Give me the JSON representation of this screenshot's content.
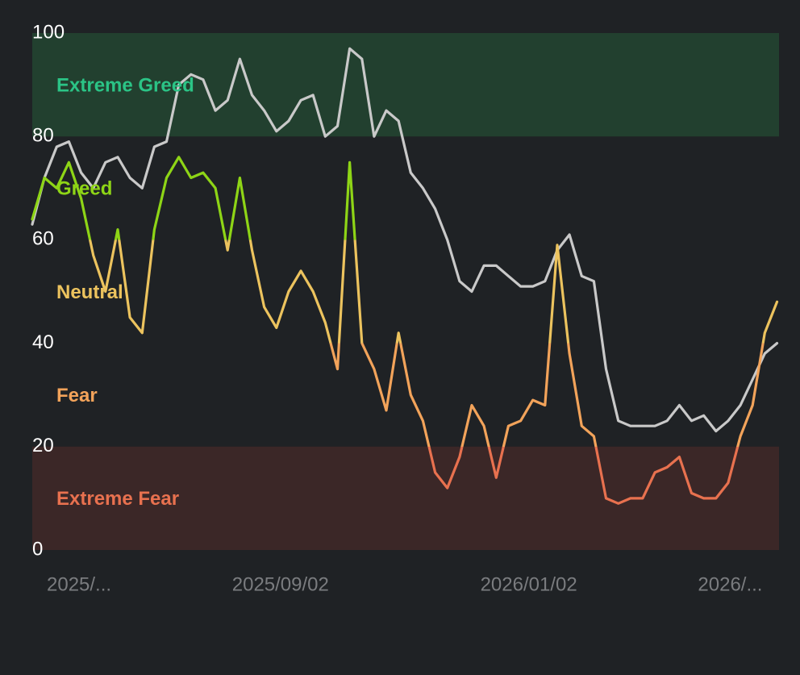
{
  "chart_data": {
    "type": "line",
    "zones": [
      {
        "name": "Extreme Greed",
        "from": 80,
        "to": 100,
        "color": "#2bc486",
        "band": "#22402f"
      },
      {
        "name": "Greed",
        "from": 60,
        "to": 80,
        "color": "#8ed516"
      },
      {
        "name": "Neutral",
        "from": 40,
        "to": 60,
        "color": "#ecc35e"
      },
      {
        "name": "Fear",
        "from": 20,
        "to": 40,
        "color": "#f2a35a"
      },
      {
        "name": "Extreme Fear",
        "from": 0,
        "to": 20,
        "color": "#e8714f",
        "band": "#3b2727"
      }
    ],
    "x": [
      0,
      6,
      12,
      18,
      24,
      30,
      36,
      42,
      48,
      54,
      60,
      66,
      72,
      78,
      84,
      90,
      96,
      102,
      108,
      114,
      120,
      126,
      132,
      138,
      144,
      150,
      156,
      162,
      168,
      174,
      180,
      186,
      192,
      198,
      204,
      210,
      216,
      222,
      228,
      234,
      240,
      246,
      252,
      258,
      264,
      270,
      276,
      282,
      288,
      294,
      300,
      306,
      312,
      318,
      324,
      330,
      336,
      342,
      348,
      354,
      360,
      366
    ],
    "series": [
      {
        "color": "zones",
        "values": [
          64,
          72,
          70,
          75,
          68,
          57,
          50,
          62,
          45,
          42,
          62,
          72,
          76,
          72,
          73,
          70,
          58,
          72,
          58,
          47,
          43,
          50,
          54,
          50,
          44,
          35,
          75,
          40,
          35,
          27,
          42,
          30,
          25,
          15,
          12,
          18,
          28,
          24,
          14,
          24,
          25,
          29,
          28,
          59,
          38,
          24,
          22,
          10,
          9,
          10,
          10,
          15,
          16,
          18,
          11,
          10,
          10,
          13,
          22,
          28,
          42,
          48
        ]
      },
      {
        "color": "#c9c9c9",
        "values": [
          63,
          72,
          78,
          79,
          73,
          70,
          75,
          76,
          72,
          70,
          78,
          79,
          90,
          92,
          91,
          85,
          87,
          95,
          88,
          85,
          81,
          83,
          87,
          88,
          80,
          82,
          97,
          95,
          80,
          85,
          83,
          73,
          70,
          66,
          60,
          52,
          50,
          55,
          55,
          53,
          51,
          51,
          52,
          58,
          61,
          53,
          52,
          35,
          25,
          24,
          24,
          24,
          25,
          28,
          25,
          26,
          23,
          25,
          28,
          33,
          38,
          40
        ]
      }
    ],
    "xlim": [
      0,
      367
    ],
    "xticks": [
      {
        "value": 23,
        "label": "2025/..."
      },
      {
        "value": 122,
        "label": "2025/09/02"
      },
      {
        "value": 244,
        "label": "2026/01/02"
      },
      {
        "value": 343,
        "label": "2026/..."
      }
    ],
    "ylim": [
      0,
      100
    ],
    "yticks": [
      0,
      20,
      40,
      60,
      80,
      100
    ]
  }
}
